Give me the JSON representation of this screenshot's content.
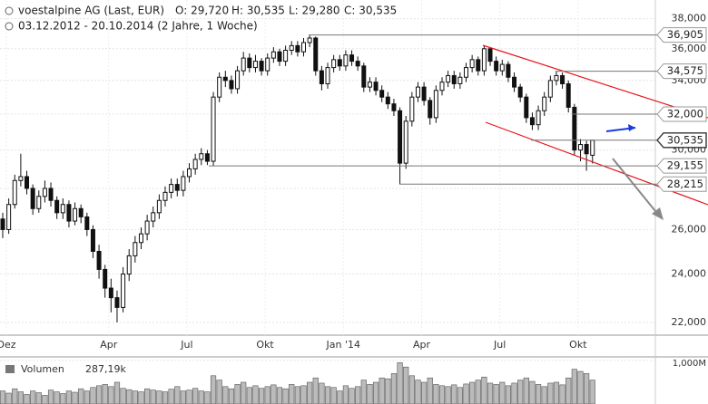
{
  "chart_data": {
    "type": "candlestick",
    "title": "voestalpine AG (Last, EUR)",
    "quote": [
      "O: 29,720",
      "H: 30,535",
      "L: 29,280",
      "C: 30,535"
    ],
    "subtitle": "03.12.2012 - 20.10.2014 (2 Jahre, 1 Woche)",
    "categories": [
      "Dez",
      null,
      null,
      null,
      null,
      null,
      null,
      null,
      null,
      null,
      null,
      null,
      null,
      null,
      null,
      null,
      null,
      "Apr",
      null,
      null,
      null,
      null,
      null,
      null,
      null,
      null,
      null,
      null,
      null,
      null,
      "Jul",
      null,
      null,
      null,
      null,
      null,
      null,
      null,
      null,
      null,
      null,
      null,
      null,
      "Okt",
      null,
      null,
      null,
      null,
      null,
      null,
      null,
      null,
      null,
      null,
      null,
      null,
      "Jan '14",
      null,
      null,
      null,
      null,
      null,
      null,
      null,
      null,
      null,
      null,
      null,
      null,
      "Apr",
      null,
      null,
      null,
      null,
      null,
      null,
      null,
      null,
      null,
      null,
      null,
      null,
      "Jul",
      null,
      null,
      null,
      null,
      null,
      null,
      null,
      null,
      null,
      null,
      null,
      null,
      "Okt",
      null,
      null,
      null
    ],
    "open": [
      26.5,
      26.0,
      27.2,
      28.4,
      28.6,
      28.0,
      27.0,
      27.6,
      28.0,
      27.4,
      26.8,
      27.2,
      26.4,
      27.0,
      26.6,
      26.0,
      25.0,
      24.2,
      23.4,
      23.0,
      22.6,
      24.0,
      24.8,
      25.4,
      25.8,
      26.4,
      26.8,
      27.4,
      27.8,
      28.2,
      27.9,
      28.6,
      29.0,
      29.5,
      29.8,
      29.4,
      33.0,
      34.2,
      34.0,
      33.5,
      34.6,
      35.4,
      34.8,
      35.2,
      34.6,
      35.4,
      35.8,
      35.2,
      35.9,
      36.2,
      35.8,
      36.4,
      36.7,
      34.6,
      33.8,
      34.8,
      35.3,
      34.9,
      35.6,
      35.2,
      34.9,
      33.6,
      33.9,
      33.4,
      33.0,
      32.6,
      32.2,
      29.3,
      31.6,
      33.0,
      33.6,
      32.8,
      31.8,
      33.4,
      33.9,
      34.3,
      33.8,
      34.2,
      34.8,
      35.3,
      34.6,
      36.0,
      35.2,
      34.6,
      35.0,
      34.2,
      33.6,
      33.0,
      31.8,
      31.4,
      32.2,
      33.0,
      34.0,
      34.3,
      33.8,
      32.4,
      30.0,
      30.3,
      29.72
    ],
    "high": [
      26.8,
      27.5,
      28.7,
      29.8,
      28.9,
      28.2,
      27.9,
      28.4,
      28.3,
      27.6,
      27.5,
      27.4,
      27.3,
      27.2,
      26.8,
      26.2,
      25.3,
      24.4,
      23.8,
      23.3,
      24.3,
      25.1,
      25.7,
      26.1,
      26.7,
      27.1,
      27.7,
      28.1,
      28.5,
      28.5,
      28.9,
      29.3,
      29.8,
      30.1,
      30.0,
      33.3,
      34.5,
      34.6,
      34.3,
      34.9,
      35.8,
      35.7,
      35.6,
      35.4,
      35.7,
      36.1,
      36.0,
      36.2,
      36.5,
      36.5,
      36.7,
      36.905,
      36.8,
      34.9,
      35.1,
      35.6,
      35.6,
      35.9,
      35.9,
      35.5,
      35.1,
      34.2,
      34.2,
      33.7,
      33.3,
      32.9,
      32.4,
      31.9,
      33.3,
      33.9,
      33.9,
      33.0,
      33.7,
      34.2,
      34.6,
      34.6,
      34.5,
      35.1,
      35.6,
      35.5,
      36.2,
      36.1,
      35.5,
      35.3,
      35.2,
      34.5,
      33.8,
      33.2,
      32.1,
      32.5,
      33.3,
      34.3,
      34.575,
      34.5,
      34.0,
      32.6,
      30.6,
      30.5,
      30.535
    ],
    "low": [
      25.6,
      25.8,
      27.0,
      28.1,
      27.7,
      26.7,
      26.8,
      27.3,
      27.1,
      26.5,
      26.5,
      26.1,
      26.2,
      26.3,
      25.7,
      24.7,
      23.8,
      23.0,
      22.4,
      22.0,
      22.4,
      23.7,
      24.5,
      25.1,
      25.5,
      26.1,
      26.5,
      27.1,
      27.5,
      27.6,
      27.6,
      28.3,
      28.7,
      29.2,
      29.2,
      29.155,
      32.7,
      33.6,
      33.2,
      33.2,
      34.3,
      34.5,
      34.5,
      34.3,
      34.3,
      35.1,
      34.9,
      34.9,
      35.6,
      35.5,
      35.5,
      36.1,
      34.3,
      33.4,
      33.5,
      34.5,
      34.6,
      34.6,
      34.9,
      34.6,
      33.3,
      33.3,
      33.1,
      32.7,
      32.3,
      31.9,
      28.215,
      29.0,
      31.3,
      32.7,
      32.5,
      31.4,
      31.5,
      33.1,
      33.6,
      33.5,
      33.5,
      33.9,
      34.5,
      34.3,
      34.3,
      34.9,
      34.3,
      34.3,
      33.9,
      33.3,
      32.7,
      31.5,
      31.1,
      31.1,
      31.9,
      32.7,
      33.7,
      33.5,
      32.1,
      29.7,
      29.4,
      28.9,
      29.28
    ],
    "close": [
      26.0,
      27.2,
      28.4,
      28.6,
      28.0,
      27.0,
      27.6,
      28.0,
      27.4,
      26.8,
      27.2,
      26.4,
      27.0,
      26.6,
      26.0,
      25.0,
      24.2,
      23.4,
      23.0,
      22.6,
      24.0,
      24.8,
      25.4,
      25.8,
      26.4,
      26.8,
      27.4,
      27.8,
      28.2,
      27.9,
      28.6,
      29.0,
      29.5,
      29.8,
      29.4,
      33.0,
      34.2,
      34.0,
      33.5,
      34.6,
      35.4,
      34.8,
      35.2,
      34.6,
      35.4,
      35.8,
      35.2,
      35.9,
      36.2,
      35.8,
      36.4,
      36.7,
      34.6,
      33.8,
      34.8,
      35.3,
      34.9,
      35.6,
      35.2,
      34.9,
      33.6,
      33.9,
      33.4,
      33.0,
      32.6,
      32.2,
      29.3,
      31.6,
      33.0,
      33.6,
      32.8,
      31.8,
      33.4,
      33.9,
      34.3,
      33.8,
      34.2,
      34.8,
      35.3,
      34.6,
      36.0,
      35.2,
      34.6,
      35.0,
      34.2,
      33.6,
      33.0,
      31.8,
      31.4,
      32.2,
      33.0,
      34.0,
      34.3,
      33.8,
      32.4,
      30.0,
      30.3,
      29.8,
      30.535
    ],
    "color": "#111111",
    "log": true,
    "grid": true,
    "ylim": [
      21.5,
      39.3
    ],
    "yticks": [
      {
        "value": 22,
        "label": "22,000"
      },
      {
        "value": 24,
        "label": "24,000"
      },
      {
        "value": 26,
        "label": "26,000"
      },
      {
        "value": 28,
        "label": "28,000"
      },
      {
        "value": 30,
        "label": "30,000"
      },
      {
        "value": 32,
        "label": "32,000"
      },
      {
        "value": 34,
        "label": "34,000"
      },
      {
        "value": 36,
        "label": "36,000"
      },
      {
        "value": 38,
        "label": "38,000"
      }
    ],
    "levels": [
      {
        "value": 36.905,
        "label": "36,905"
      },
      {
        "value": 34.575,
        "label": "34,575"
      },
      {
        "value": 32,
        "label": "32,000"
      },
      {
        "value": 30.535,
        "label": "30,535"
      },
      {
        "value": 29.155,
        "label": "29,155"
      },
      {
        "value": 28.215,
        "label": "28,215"
      }
    ],
    "volume": {
      "name": "Volumen",
      "value_label": "287,19k",
      "color": "#bbbbbb",
      "ylim": [
        0,
        1
      ],
      "yticks": [
        {
          "value": 1,
          "label": "1,000M"
        }
      ],
      "values": [
        0.3,
        0.25,
        0.35,
        0.28,
        0.22,
        0.3,
        0.26,
        0.2,
        0.32,
        0.28,
        0.24,
        0.3,
        0.27,
        0.35,
        0.3,
        0.38,
        0.42,
        0.45,
        0.4,
        0.5,
        0.36,
        0.33,
        0.3,
        0.28,
        0.35,
        0.32,
        0.3,
        0.28,
        0.34,
        0.4,
        0.3,
        0.32,
        0.36,
        0.3,
        0.28,
        0.65,
        0.55,
        0.4,
        0.35,
        0.45,
        0.5,
        0.38,
        0.42,
        0.36,
        0.4,
        0.44,
        0.38,
        0.35,
        0.45,
        0.4,
        0.42,
        0.5,
        0.6,
        0.48,
        0.4,
        0.38,
        0.3,
        0.42,
        0.36,
        0.4,
        0.55,
        0.45,
        0.5,
        0.6,
        0.58,
        0.7,
        0.95,
        0.85,
        0.65,
        0.55,
        0.5,
        0.6,
        0.45,
        0.42,
        0.4,
        0.44,
        0.38,
        0.46,
        0.5,
        0.55,
        0.62,
        0.48,
        0.45,
        0.5,
        0.42,
        0.48,
        0.55,
        0.6,
        0.52,
        0.45,
        0.4,
        0.48,
        0.5,
        0.44,
        0.6,
        0.8,
        0.75,
        0.7,
        0.55
      ]
    }
  }
}
